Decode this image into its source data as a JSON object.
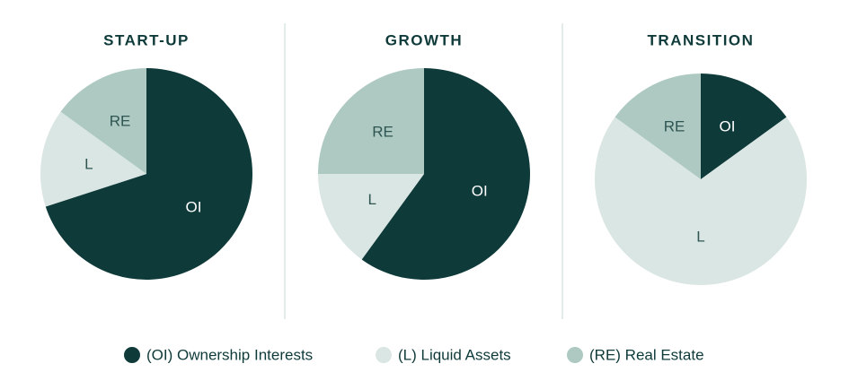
{
  "chart_data": [
    {
      "type": "pie",
      "title": "START-UP",
      "categories": [
        "OI",
        "L",
        "RE"
      ],
      "values": [
        70,
        15,
        15
      ],
      "colors": [
        "#0f3a3a",
        "#dae6e3",
        "#adc9c2"
      ]
    },
    {
      "type": "pie",
      "title": "GROWTH",
      "categories": [
        "OI",
        "L",
        "RE"
      ],
      "values": [
        60,
        15,
        25
      ],
      "colors": [
        "#0f3a3a",
        "#dae6e3",
        "#adc9c2"
      ]
    },
    {
      "type": "pie",
      "title": "TRANSITION",
      "categories": [
        "OI",
        "L",
        "RE"
      ],
      "values": [
        15,
        70,
        15
      ],
      "colors": [
        "#0f3a3a",
        "#dae6e3",
        "#adc9c2"
      ]
    }
  ],
  "legend": [
    {
      "label": "(OI) Ownership Interests",
      "color": "#0f3a3a"
    },
    {
      "label": "(L) Liquid Assets",
      "color": "#dae6e3"
    },
    {
      "label": "(RE) Real Estate",
      "color": "#adc9c2"
    }
  ]
}
